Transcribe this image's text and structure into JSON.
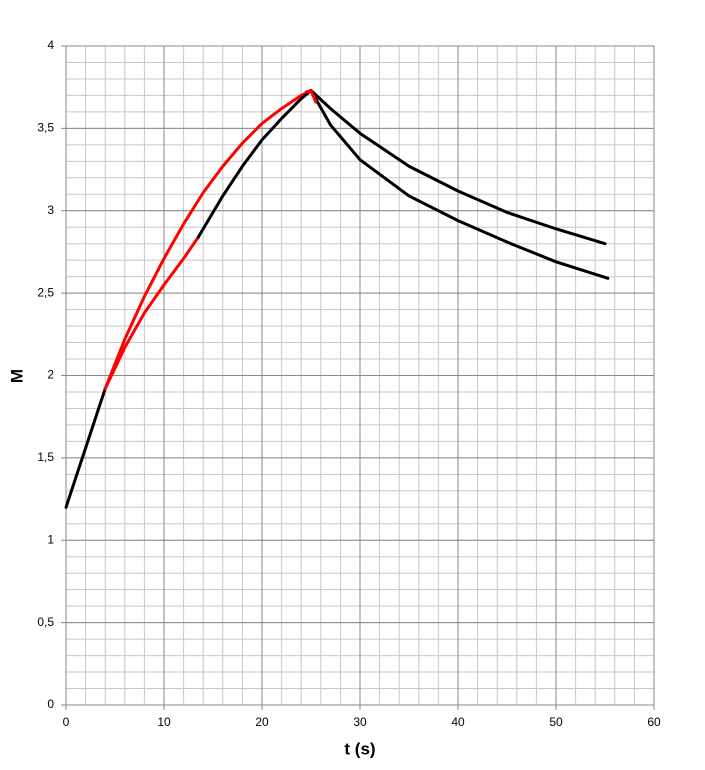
{
  "chart_data": {
    "type": "line",
    "xlabel": "t (s)",
    "ylabel": "M",
    "xlim": [
      0,
      60
    ],
    "xticks": [
      0,
      10,
      20,
      30,
      40,
      50,
      60
    ],
    "ylim": [
      0,
      4
    ],
    "yticks": [
      0,
      {
        "value": 0.5,
        "label": "0,5"
      },
      1,
      {
        "value": 1.5,
        "label": "1,5"
      },
      2,
      {
        "value": 2.5,
        "label": "2,5"
      },
      3,
      {
        "value": 3.5,
        "label": "3,5"
      },
      4
    ],
    "xminorticks": [
      0,
      2,
      4,
      6,
      8,
      10,
      12,
      14,
      16,
      18,
      20,
      22,
      24,
      26,
      28,
      30,
      32,
      34,
      36,
      38,
      40,
      42,
      44,
      46,
      48,
      50,
      52,
      54,
      56,
      58,
      60
    ],
    "yminorticks": [
      0,
      0.1,
      0.2,
      0.3,
      0.4,
      0.5,
      0.6,
      0.7,
      0.8,
      0.9,
      1,
      1.1,
      1.2,
      1.3,
      1.4,
      1.5,
      1.6,
      1.7,
      1.8,
      1.9,
      2,
      2.1,
      2.2,
      2.3,
      2.4,
      2.5,
      2.6,
      2.7,
      2.8,
      2.9,
      3,
      3.1,
      3.2,
      3.3,
      3.4,
      3.5,
      3.6,
      3.7,
      3.8,
      3.9,
      4
    ],
    "grid": true,
    "series": [
      {
        "color": "#000000",
        "x": [
          0,
          2,
          4
        ],
        "values": [
          1.2,
          1.56,
          1.92
        ]
      },
      {
        "color": "#ff0000",
        "x": [
          4,
          6,
          8,
          10,
          12,
          14,
          16,
          18,
          20,
          22,
          24,
          25
        ],
        "values": [
          1.92,
          2.22,
          2.48,
          2.71,
          2.92,
          3.11,
          3.27,
          3.41,
          3.53,
          3.62,
          3.7,
          3.73
        ]
      },
      {
        "color": "#ff0000",
        "x": [
          4,
          6,
          8,
          10,
          12,
          13.5
        ],
        "values": [
          1.92,
          2.17,
          2.38,
          2.55,
          2.71,
          2.84
        ]
      },
      {
        "color": "#000000",
        "x": [
          13.5,
          16,
          18,
          20,
          22,
          24,
          25
        ],
        "values": [
          2.84,
          3.09,
          3.27,
          3.43,
          3.56,
          3.68,
          3.73
        ]
      },
      {
        "color": "#000000",
        "x": [
          25,
          27,
          30,
          35,
          40,
          45,
          50,
          55
        ],
        "values": [
          3.73,
          3.62,
          3.47,
          3.27,
          3.12,
          2.99,
          2.89,
          2.8
        ]
      },
      {
        "color": "#000000",
        "x": [
          25,
          27,
          30,
          35,
          40,
          45,
          50,
          55.3
        ],
        "values": [
          3.73,
          3.52,
          3.31,
          3.09,
          2.94,
          2.81,
          2.69,
          2.59
        ]
      },
      {
        "color": "#ff0000",
        "x": [
          24.5,
          25,
          25.5
        ],
        "values": [
          3.72,
          3.73,
          3.66
        ]
      }
    ]
  }
}
